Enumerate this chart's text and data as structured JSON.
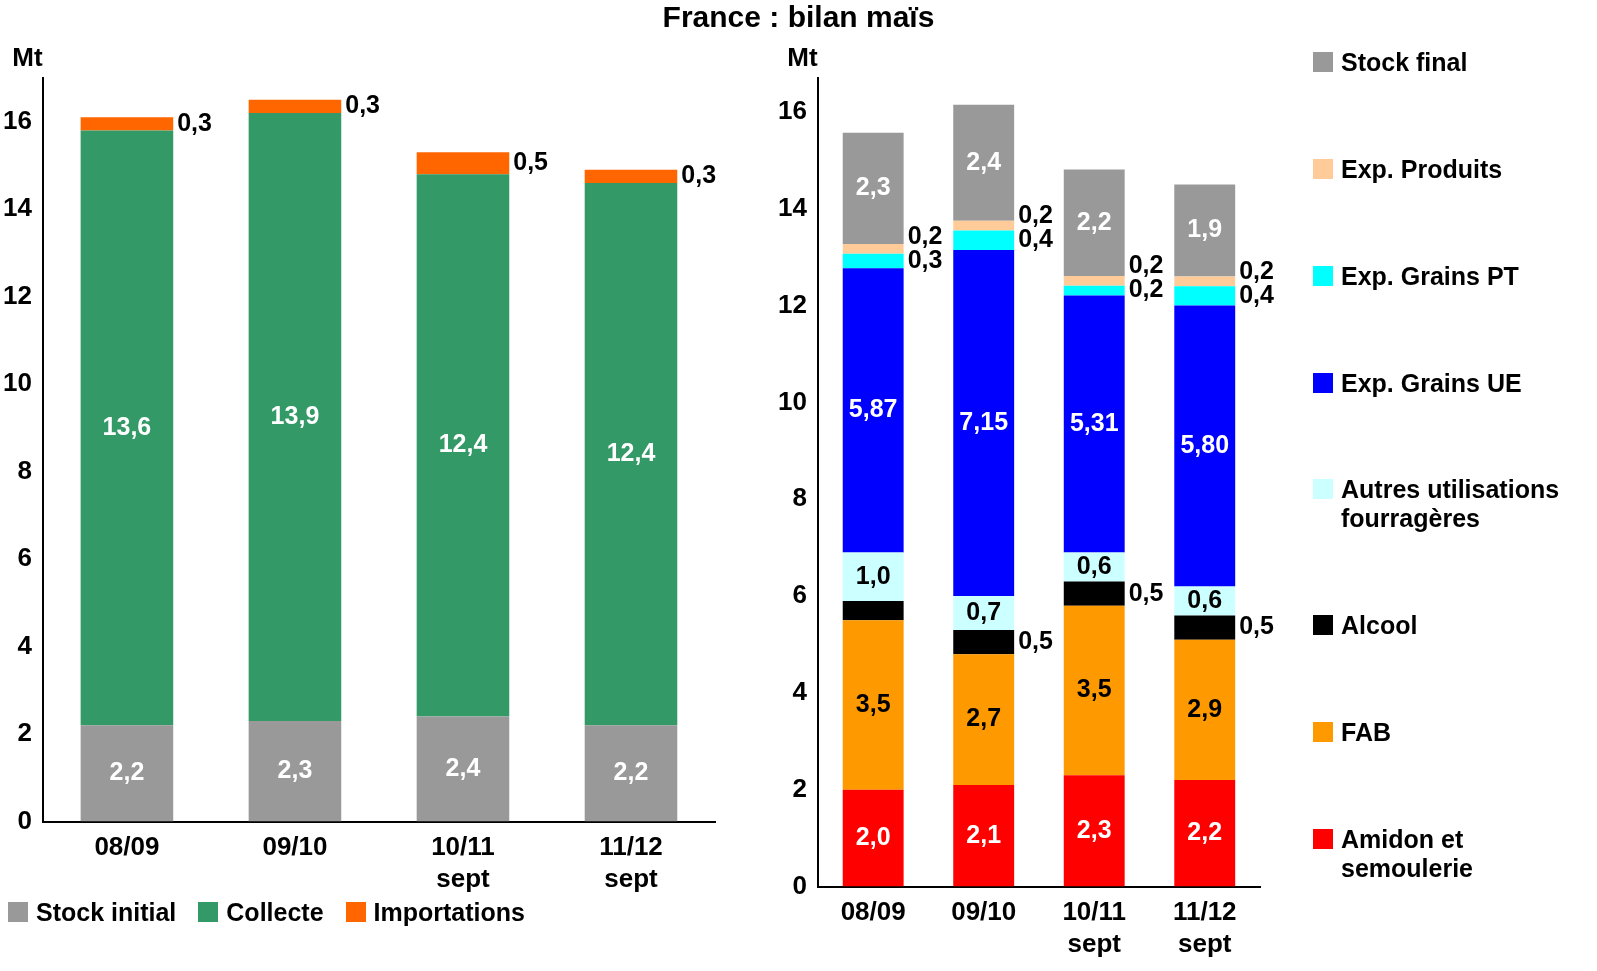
{
  "chart_data": [
    {
      "type": "bar",
      "title": "France : bilan maïs",
      "ylabel": "Mt",
      "stacked": true,
      "legend": "bottom",
      "categories": [
        "08/09",
        "09/10",
        "10/11 sept",
        "11/12 sept"
      ],
      "ylim": [
        0,
        17
      ],
      "yticks": [
        0,
        2,
        4,
        6,
        8,
        10,
        12,
        14,
        16
      ],
      "series": [
        {
          "name": "Stock initial",
          "color": "#999999",
          "values": [
            2.2,
            2.3,
            2.4,
            2.2
          ],
          "value_labels": [
            "2,2",
            "2,3",
            "2,4",
            "2,2"
          ]
        },
        {
          "name": "Collecte",
          "color": "#339966",
          "values": [
            13.6,
            13.9,
            12.4,
            12.4
          ],
          "value_labels": [
            "13,6",
            "13,9",
            "12,4",
            "12,4"
          ]
        },
        {
          "name": "Importations",
          "color": "#ff6600",
          "values": [
            0.3,
            0.3,
            0.5,
            0.3
          ],
          "value_labels": [
            "0,3",
            "0,3",
            "0,5",
            "0,3"
          ]
        }
      ]
    },
    {
      "type": "bar",
      "ylabel": "Mt",
      "stacked": true,
      "legend": "right",
      "categories": [
        "08/09",
        "09/10",
        "10/11 sept",
        "11/12 sept"
      ],
      "ylim": [
        0,
        16.7
      ],
      "yticks": [
        0,
        2,
        4,
        6,
        8,
        10,
        12,
        14,
        16
      ],
      "series": [
        {
          "name": "Amidon et semoulerie",
          "color": "#ff0000",
          "values": [
            2.0,
            2.1,
            2.3,
            2.2
          ],
          "value_labels": [
            "2,0",
            "2,1",
            "2,3",
            "2,2"
          ]
        },
        {
          "name": "FAB",
          "color": "#ff9900",
          "values": [
            3.5,
            2.7,
            3.5,
            2.9
          ],
          "value_labels": [
            "3,5",
            "2,7",
            "3,5",
            "2,9"
          ]
        },
        {
          "name": "Alcool",
          "color": "#000000",
          "values": [
            0.4,
            0.5,
            0.5,
            0.5
          ],
          "value_labels": [
            null,
            "0,5",
            "0,5",
            "0,5"
          ]
        },
        {
          "name": "Autres utilisations fourragères",
          "color": "#ccffff",
          "values": [
            1.0,
            0.7,
            0.6,
            0.6
          ],
          "value_labels": [
            "1,0",
            "0,7",
            "0,6",
            "0,6"
          ]
        },
        {
          "name": "Exp. Grains UE",
          "color": "#0000ff",
          "values": [
            5.87,
            7.15,
            5.31,
            5.8
          ],
          "value_labels": [
            "5,87",
            "7,15",
            "5,31",
            "5,80"
          ]
        },
        {
          "name": "Exp. Grains PT",
          "color": "#00ffff",
          "values": [
            0.3,
            0.4,
            0.2,
            0.4
          ],
          "value_labels": [
            "0,3",
            "0,4",
            "0,2",
            "0,4"
          ]
        },
        {
          "name": "Exp. Produits",
          "color": "#ffcc99",
          "values": [
            0.2,
            0.2,
            0.2,
            0.2
          ],
          "value_labels": [
            "0,2",
            "0,2",
            "0,2",
            "0,2"
          ]
        },
        {
          "name": "Stock final",
          "color": "#999999",
          "values": [
            2.3,
            2.4,
            2.2,
            1.9
          ],
          "value_labels": [
            "2,3",
            "2,4",
            "2,2",
            "1,9"
          ]
        }
      ]
    }
  ]
}
